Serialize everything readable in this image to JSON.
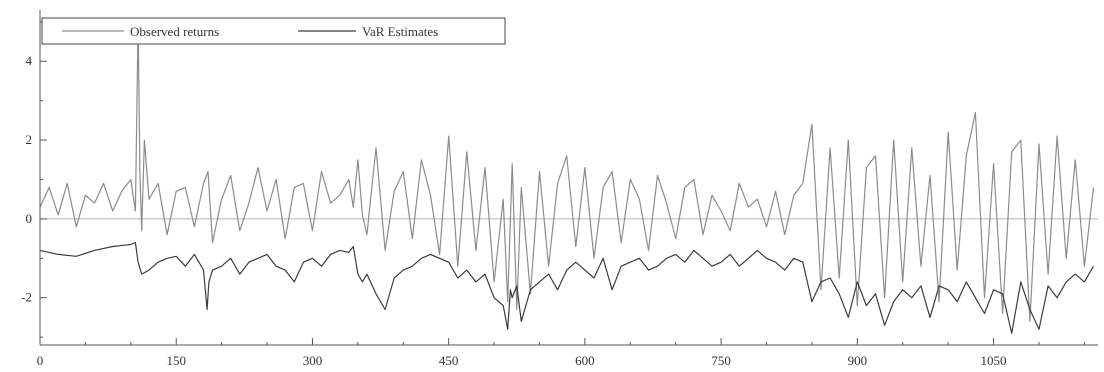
{
  "chart_data": {
    "type": "line",
    "legend": {
      "position": "top-left",
      "entries": [
        "Observed returns",
        "VaR Estimates"
      ]
    },
    "x_ticks": [
      "0",
      "150",
      "300",
      "450",
      "600",
      "750",
      "900",
      "1050"
    ],
    "y_ticks": [
      "-2",
      "0",
      "2",
      "4"
    ],
    "xlim": [
      0,
      1165
    ],
    "ylim": [
      -3.2,
      5.3
    ],
    "grid": false,
    "reference_line_y": 0,
    "colors": {
      "observed": "#8c8c8c",
      "var": "#3c3c3c",
      "axis": "#555555"
    },
    "series": [
      {
        "name": "Observed returns",
        "x": [
          0,
          10,
          20,
          30,
          40,
          50,
          60,
          70,
          80,
          90,
          100,
          105,
          108,
          110,
          112,
          115,
          120,
          130,
          140,
          150,
          160,
          170,
          180,
          185,
          190,
          200,
          210,
          220,
          230,
          240,
          250,
          260,
          270,
          280,
          290,
          300,
          310,
          320,
          330,
          340,
          345,
          350,
          355,
          360,
          370,
          380,
          390,
          400,
          410,
          420,
          430,
          440,
          450,
          460,
          470,
          480,
          490,
          500,
          510,
          515,
          520,
          525,
          530,
          540,
          550,
          560,
          570,
          580,
          590,
          600,
          610,
          620,
          630,
          640,
          650,
          660,
          670,
          680,
          690,
          700,
          710,
          720,
          730,
          740,
          750,
          760,
          770,
          780,
          790,
          800,
          810,
          820,
          830,
          840,
          850,
          860,
          870,
          880,
          890,
          900,
          910,
          920,
          930,
          940,
          950,
          960,
          970,
          980,
          990,
          1000,
          1010,
          1020,
          1030,
          1040,
          1050,
          1060,
          1070,
          1080,
          1090,
          1100,
          1110,
          1120,
          1130,
          1140,
          1150,
          1160
        ],
        "y": [
          0.3,
          0.8,
          0.1,
          0.9,
          -0.2,
          0.6,
          0.4,
          0.9,
          0.2,
          0.7,
          1.0,
          0.2,
          5.0,
          1.2,
          -0.3,
          2.0,
          0.5,
          0.9,
          -0.4,
          0.7,
          0.8,
          -0.2,
          0.9,
          1.2,
          -0.6,
          0.5,
          1.1,
          -0.3,
          0.4,
          1.3,
          0.2,
          1.0,
          -0.5,
          0.8,
          0.9,
          -0.3,
          1.2,
          0.4,
          0.6,
          1.0,
          0.3,
          1.5,
          0.1,
          -0.4,
          1.8,
          -0.8,
          0.7,
          1.2,
          -0.5,
          1.5,
          0.6,
          -0.9,
          2.1,
          -1.2,
          1.7,
          -0.8,
          1.3,
          -1.6,
          0.5,
          -2.1,
          1.4,
          -2.3,
          0.8,
          -1.9,
          1.2,
          -1.2,
          0.9,
          1.6,
          -0.7,
          1.3,
          -1.0,
          0.8,
          1.2,
          -0.6,
          1.0,
          0.5,
          -0.8,
          1.1,
          0.4,
          -0.5,
          0.8,
          1.0,
          -0.4,
          0.6,
          0.2,
          -0.3,
          0.9,
          0.3,
          0.5,
          -0.2,
          0.7,
          -0.4,
          0.6,
          0.9,
          2.4,
          -1.8,
          1.8,
          -1.5,
          2.0,
          -2.2,
          1.3,
          1.6,
          -2.0,
          2.0,
          -1.6,
          1.8,
          -1.2,
          1.1,
          -2.1,
          2.2,
          -1.3,
          1.6,
          2.7,
          -2.0,
          1.4,
          -2.4,
          1.7,
          2.0,
          -2.6,
          1.9,
          -1.4,
          2.1,
          -1.0,
          1.5,
          -1.2,
          0.8
        ]
      },
      {
        "name": "VaR Estimates",
        "x": [
          0,
          20,
          40,
          60,
          80,
          100,
          105,
          108,
          112,
          120,
          130,
          140,
          150,
          160,
          170,
          180,
          184,
          186,
          190,
          200,
          210,
          220,
          230,
          240,
          250,
          260,
          270,
          280,
          290,
          300,
          310,
          320,
          330,
          340,
          345,
          350,
          355,
          360,
          370,
          380,
          390,
          400,
          410,
          420,
          430,
          440,
          450,
          460,
          470,
          480,
          490,
          500,
          510,
          515,
          518,
          520,
          525,
          530,
          540,
          550,
          560,
          570,
          580,
          590,
          600,
          610,
          620,
          630,
          640,
          650,
          660,
          670,
          680,
          690,
          700,
          710,
          720,
          730,
          740,
          750,
          760,
          770,
          780,
          790,
          800,
          810,
          820,
          830,
          840,
          850,
          860,
          870,
          880,
          890,
          900,
          910,
          920,
          930,
          940,
          950,
          960,
          970,
          980,
          990,
          1000,
          1010,
          1020,
          1030,
          1040,
          1050,
          1060,
          1070,
          1080,
          1090,
          1100,
          1110,
          1120,
          1130,
          1140,
          1150,
          1160
        ],
        "y": [
          -0.8,
          -0.9,
          -0.95,
          -0.8,
          -0.7,
          -0.65,
          -0.6,
          -1.1,
          -1.4,
          -1.3,
          -1.1,
          -1.0,
          -0.95,
          -1.2,
          -0.9,
          -1.3,
          -2.3,
          -1.6,
          -1.3,
          -1.2,
          -1.0,
          -1.4,
          -1.1,
          -1.0,
          -0.9,
          -1.2,
          -1.3,
          -1.6,
          -1.1,
          -1.0,
          -1.2,
          -0.9,
          -0.8,
          -0.85,
          -0.7,
          -1.4,
          -1.6,
          -1.4,
          -1.9,
          -2.3,
          -1.5,
          -1.3,
          -1.2,
          -1.0,
          -0.9,
          -1.0,
          -1.1,
          -1.5,
          -1.3,
          -1.6,
          -1.4,
          -2.0,
          -2.2,
          -2.8,
          -1.8,
          -2.0,
          -1.7,
          -2.6,
          -1.8,
          -1.6,
          -1.4,
          -1.8,
          -1.3,
          -1.1,
          -1.3,
          -1.5,
          -1.0,
          -1.8,
          -1.2,
          -1.1,
          -1.0,
          -1.3,
          -1.2,
          -1.0,
          -0.9,
          -1.1,
          -0.8,
          -1.0,
          -1.2,
          -1.1,
          -0.9,
          -1.2,
          -1.0,
          -0.8,
          -1.0,
          -1.1,
          -1.3,
          -1.0,
          -1.1,
          -2.1,
          -1.6,
          -1.5,
          -1.9,
          -2.5,
          -1.6,
          -2.2,
          -1.9,
          -2.7,
          -2.1,
          -1.8,
          -2.0,
          -1.7,
          -2.5,
          -1.7,
          -1.8,
          -2.1,
          -1.6,
          -2.0,
          -2.4,
          -1.8,
          -1.9,
          -2.9,
          -1.6,
          -2.3,
          -2.8,
          -1.7,
          -2.0,
          -1.6,
          -1.4,
          -1.6,
          -1.2
        ]
      }
    ]
  }
}
